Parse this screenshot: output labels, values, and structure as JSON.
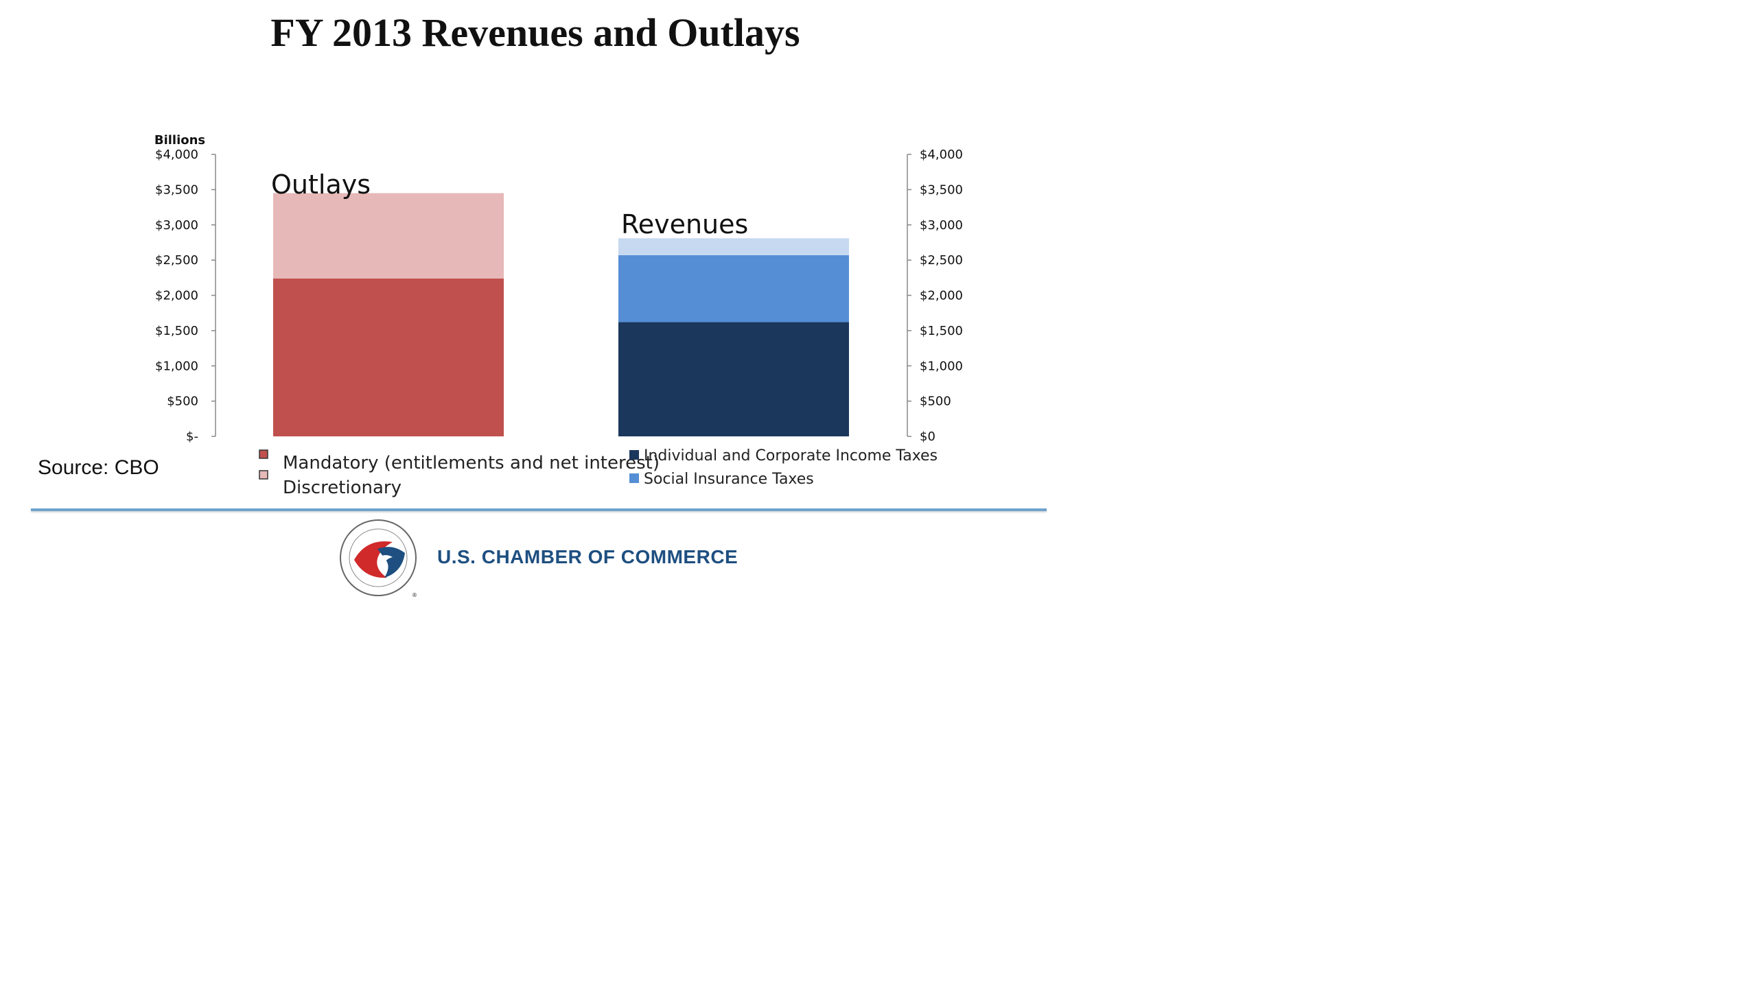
{
  "title": "FY 2013 Revenues and Outlays",
  "source": "Source: CBO",
  "branding": {
    "org_name": "U.S. CHAMBER OF COMMERCE",
    "seal_text": "THE SPIRIT OF ENTERPRISE • U.S. CHAMBER OF COMMERCE"
  },
  "colors": {
    "mandatory": "#c0504d",
    "discretionary": "#e6b8b7",
    "income_taxes": "#1b375c",
    "social_insurance": "#558ed5",
    "other_revenue": "#c6d9f1",
    "divider": "#6fa3cc",
    "brand": "#1e4f80"
  },
  "chart_data": {
    "type": "bar",
    "stacked": true,
    "categories": [
      "Outlays",
      "Revenues"
    ],
    "y_unit_label": "Billions",
    "ylim": [
      0,
      4000
    ],
    "left_ticks": [
      "$-",
      "$500",
      "$1,000",
      "$1,500",
      "$2,000",
      "$2,500",
      "$3,000",
      "$3,500",
      "$4,000"
    ],
    "right_ticks": [
      "$0",
      "$500",
      "$1,000",
      "$1,500",
      "$2,000",
      "$2,500",
      "$3,000",
      "$3,500",
      "$4,000"
    ],
    "tick_values": [
      0,
      500,
      1000,
      1500,
      2000,
      2500,
      3000,
      3500,
      4000
    ],
    "series": [
      {
        "name": "Mandatory (entitlements and net interest)",
        "category": "Outlays",
        "value": 2240,
        "color": "#c0504d"
      },
      {
        "name": "Discretionary",
        "category": "Outlays",
        "value": 1210,
        "color": "#e6b8b7"
      },
      {
        "name": "Individual and Corporate Income Taxes",
        "category": "Revenues",
        "value": 1620,
        "color": "#1b375c"
      },
      {
        "name": "Social Insurance Taxes",
        "category": "Revenues",
        "value": 950,
        "color": "#558ed5"
      },
      {
        "name": "",
        "category": "Revenues",
        "value": 240,
        "color": "#c6d9f1"
      }
    ],
    "legend": [
      {
        "label": "Mandatory (entitlements and net interest)",
        "color": "#c0504d"
      },
      {
        "label": "Discretionary",
        "color": "#e6b8b7"
      },
      {
        "label": "Individual and Corporate Income Taxes",
        "color": "#1b375c"
      },
      {
        "label": "Social Insurance Taxes",
        "color": "#558ed5"
      }
    ],
    "grid": false
  }
}
